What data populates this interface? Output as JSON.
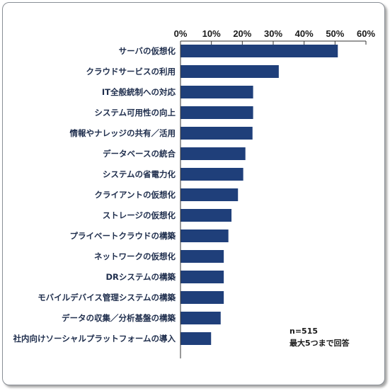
{
  "chart_data": {
    "type": "bar",
    "orientation": "horizontal",
    "categories": [
      "サーバの仮想化",
      "クラウドサービスの利用",
      "IT全般統制への対応",
      "システム可用性の向上",
      "情報やナレッジの共有／活用",
      "データベースの統合",
      "システムの省電力化",
      "クライアントの仮想化",
      "ストレージの仮想化",
      "プライベートクラウドの構築",
      "ネットワークの仮想化",
      "DRシステムの構築",
      "モバイルデバイス管理システムの構築",
      "データの収集／分析基盤の構築",
      "社内向けソーシャルプラットフォームの導入"
    ],
    "values": [
      50.9,
      31.8,
      23.5,
      23.5,
      23.3,
      21.0,
      20.3,
      18.6,
      16.5,
      15.5,
      14.0,
      14.0,
      14.0,
      13.0,
      9.9
    ],
    "xlim": [
      0,
      60
    ],
    "ticks": [
      "0%",
      "10%",
      "20%",
      "30%",
      "40%",
      "50%",
      "60%"
    ],
    "tick_values": [
      0,
      10,
      20,
      30,
      40,
      50,
      60
    ],
    "bar_color": "#1f3f7a",
    "grid": false,
    "annotations": [
      "n=515",
      "最大5つまで回答"
    ]
  }
}
